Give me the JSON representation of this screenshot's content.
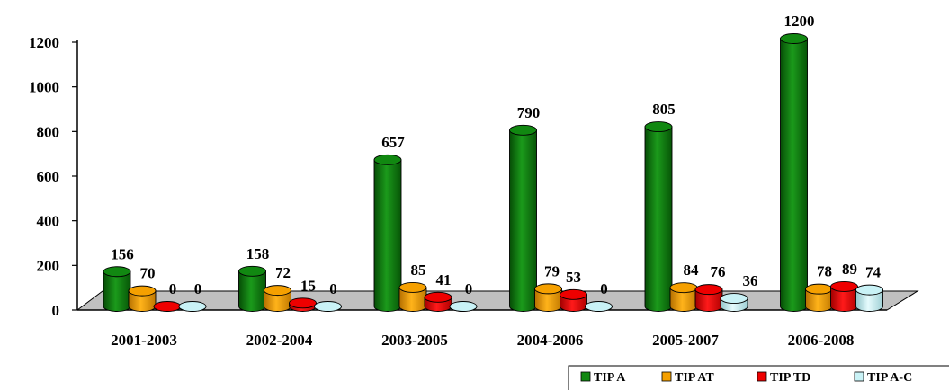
{
  "chart_data": {
    "type": "bar",
    "title": "",
    "xlabel": "",
    "ylabel": "",
    "ylim": [
      0,
      1200
    ],
    "y_ticks": [
      "0",
      "200",
      "400",
      "600",
      "800",
      "1000",
      "1200"
    ],
    "categories": [
      "2001-2003",
      "2002-2004",
      "2003-2005",
      "2004-2006",
      "2005-2007",
      "2006-2008"
    ],
    "series": [
      {
        "name": "TIP A",
        "color": "#118811",
        "values": [
          156,
          158,
          657,
          790,
          805,
          1200
        ]
      },
      {
        "name": "TIP AT",
        "color": "#f5a000",
        "values": [
          70,
          72,
          85,
          79,
          84,
          78
        ]
      },
      {
        "name": "TIP TD",
        "color": "#ee0000",
        "values": [
          0,
          15,
          41,
          53,
          76,
          89
        ]
      },
      {
        "name": "TIP A-C",
        "color": "#c9f2f6",
        "values": [
          0,
          0,
          0,
          0,
          36,
          74
        ]
      }
    ],
    "legend_position": "bottom-right",
    "grid": false
  }
}
